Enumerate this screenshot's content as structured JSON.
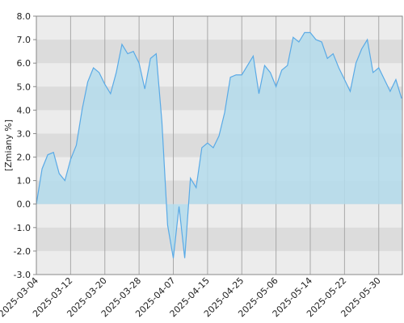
{
  "chart_data": {
    "type": "area",
    "y_label": "[Zmiany %]",
    "categories": [
      "2025-03-04",
      null,
      null,
      null,
      null,
      null,
      "2025-03-12",
      null,
      null,
      null,
      null,
      null,
      "2025-03-20",
      null,
      null,
      null,
      null,
      null,
      "2025-03-28",
      null,
      null,
      null,
      null,
      null,
      "2025-04-07",
      null,
      null,
      null,
      null,
      null,
      "2025-04-15",
      null,
      null,
      null,
      null,
      null,
      "2025-04-25",
      null,
      null,
      null,
      null,
      null,
      "2025-05-06",
      null,
      null,
      null,
      null,
      null,
      "2025-05-14",
      null,
      null,
      null,
      null,
      null,
      "2025-05-22",
      null,
      null,
      null,
      null,
      null,
      "2025-05-30",
      null,
      null,
      null,
      null
    ],
    "values": [
      0.0,
      1.5,
      2.1,
      2.2,
      1.3,
      1.0,
      1.9,
      2.5,
      4.0,
      5.2,
      5.8,
      5.6,
      5.1,
      4.7,
      5.6,
      6.8,
      6.4,
      6.5,
      6.0,
      4.9,
      6.2,
      6.4,
      3.5,
      -0.9,
      -2.3,
      -0.1,
      -2.3,
      1.1,
      0.7,
      2.4,
      2.6,
      2.4,
      2.9,
      3.9,
      5.4,
      5.5,
      5.5,
      5.9,
      6.3,
      4.7,
      5.9,
      5.6,
      5.0,
      5.7,
      5.9,
      7.1,
      6.9,
      7.3,
      7.3,
      7.0,
      6.9,
      6.2,
      6.4,
      5.8,
      5.3,
      4.8,
      6.0,
      6.6,
      7.0,
      5.6,
      5.8,
      5.3,
      4.8,
      5.3,
      4.5
    ],
    "color": "#5aaae6",
    "fill": "#b4dcec",
    "ylim": [
      -3,
      8
    ],
    "yticks": [
      {
        "value": -3,
        "label": "-3.0"
      },
      {
        "value": -2,
        "label": "-2.0"
      },
      {
        "value": -1,
        "label": "-1.0"
      },
      {
        "value": 0,
        "label": "0.0"
      },
      {
        "value": 1,
        "label": "1.0"
      },
      {
        "value": 2,
        "label": "2.0"
      },
      {
        "value": 3,
        "label": "3.0"
      },
      {
        "value": 4,
        "label": "4.0"
      },
      {
        "value": 5,
        "label": "5.0"
      },
      {
        "value": 6,
        "label": "6.0"
      },
      {
        "value": 7,
        "label": "7.0"
      },
      {
        "value": 8,
        "label": "8.0"
      }
    ],
    "grid": true
  }
}
